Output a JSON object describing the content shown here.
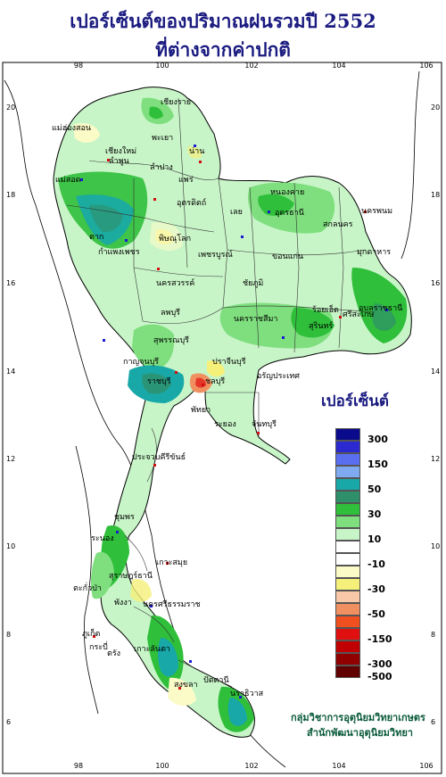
{
  "title": {
    "line1": "เปอร์เซ็นต์ของปริมาณฝนรวมปี 2552",
    "line2": "ที่ต่างจากค่าปกติ"
  },
  "axes": {
    "x_ticks": [
      "98",
      "100",
      "102",
      "104",
      "106"
    ],
    "y_ticks": [
      "20",
      "18",
      "16",
      "14",
      "12",
      "10",
      "8",
      "6"
    ]
  },
  "places": [
    {
      "name": "เชียงราย"
    },
    {
      "name": "แม่ฮ่องสอน"
    },
    {
      "name": "พะเยา"
    },
    {
      "name": "เชียงใหม่"
    },
    {
      "name": "ลำพูน"
    },
    {
      "name": "ลำปาง"
    },
    {
      "name": "น่าน"
    },
    {
      "name": "แพร่"
    },
    {
      "name": "อุตรดิตถ์"
    },
    {
      "name": "แม่สอด"
    },
    {
      "name": "ตาก"
    },
    {
      "name": "หนองคาย"
    },
    {
      "name": "อุดรธานี"
    },
    {
      "name": "นครพนม"
    },
    {
      "name": "สกลนคร"
    },
    {
      "name": "มุกดาหาร"
    },
    {
      "name": "เลย"
    },
    {
      "name": "พิษณุโลก"
    },
    {
      "name": "กำแพงเพชร"
    },
    {
      "name": "เพชรบูรณ์"
    },
    {
      "name": "ขอนแก่น"
    },
    {
      "name": "นครสวรรค์"
    },
    {
      "name": "ชัยภูมิ"
    },
    {
      "name": "อุบลราชธานี"
    },
    {
      "name": "ร้อยเอ็ด"
    },
    {
      "name": "ลพบุรี"
    },
    {
      "name": "นครราชสีมา"
    },
    {
      "name": "สุรินทร์"
    },
    {
      "name": "ศรีสะเกษ"
    },
    {
      "name": "สุพรรณบุรี"
    },
    {
      "name": "กาญจนบุรี"
    },
    {
      "name": "ปราจีนบุรี"
    },
    {
      "name": "อรัญประเทศ"
    },
    {
      "name": "ราชบุรี"
    },
    {
      "name": "ชลบุรี"
    },
    {
      "name": "พัทยา"
    },
    {
      "name": "ระยอง"
    },
    {
      "name": "จันทบุรี"
    },
    {
      "name": "ประจวบคีรีขันธ์"
    },
    {
      "name": "ชุมพร"
    },
    {
      "name": "ระนอง"
    },
    {
      "name": "สุราษฎร์ธานี"
    },
    {
      "name": "เกาะสมุย"
    },
    {
      "name": "ตะกั่วป่า"
    },
    {
      "name": "พังงา"
    },
    {
      "name": "นครศรีธรรมราช"
    },
    {
      "name": "ภูเก็ต"
    },
    {
      "name": "กระบี่"
    },
    {
      "name": "เกาะลันตา"
    },
    {
      "name": "ตรัง"
    },
    {
      "name": "สงขลา"
    },
    {
      "name": "ปัตตานี"
    },
    {
      "name": "นราธิวาส"
    }
  ],
  "legend": {
    "title": "เปอร์เซ็นต์",
    "items": [
      {
        "label": "300",
        "color": "#0a0a8c"
      },
      {
        "label": "",
        "color": "#2a2ad0"
      },
      {
        "label": "150",
        "color": "#5a6ef0"
      },
      {
        "label": "",
        "color": "#7faaf0"
      },
      {
        "label": "50",
        "color": "#18a8a8"
      },
      {
        "label": "",
        "color": "#2f8f6a"
      },
      {
        "label": "30",
        "color": "#2fbf3a"
      },
      {
        "label": "",
        "color": "#7fdf7f"
      },
      {
        "label": "10",
        "color": "#c8f5c8"
      },
      {
        "label": "",
        "color": "#ffffff"
      },
      {
        "label": "-10",
        "color": "#ffffff"
      },
      {
        "label": "",
        "color": "#fbfbc8"
      },
      {
        "label": "-30",
        "color": "#f5f07a"
      },
      {
        "label": "",
        "color": "#f8c8a8"
      },
      {
        "label": "-50",
        "color": "#f09060"
      },
      {
        "label": "",
        "color": "#f05020"
      },
      {
        "label": "-150",
        "color": "#e01010"
      },
      {
        "label": "",
        "color": "#c00000"
      },
      {
        "label": "-300",
        "color": "#900000"
      },
      {
        "label": "-500",
        "color": "#600000"
      }
    ]
  },
  "credit": {
    "line1": "กลุ่มวิชาการอุตุนิยมวิทยาเกษตร",
    "line2": "สำนักพัฒนาอุตุนิยมวิทยา"
  }
}
